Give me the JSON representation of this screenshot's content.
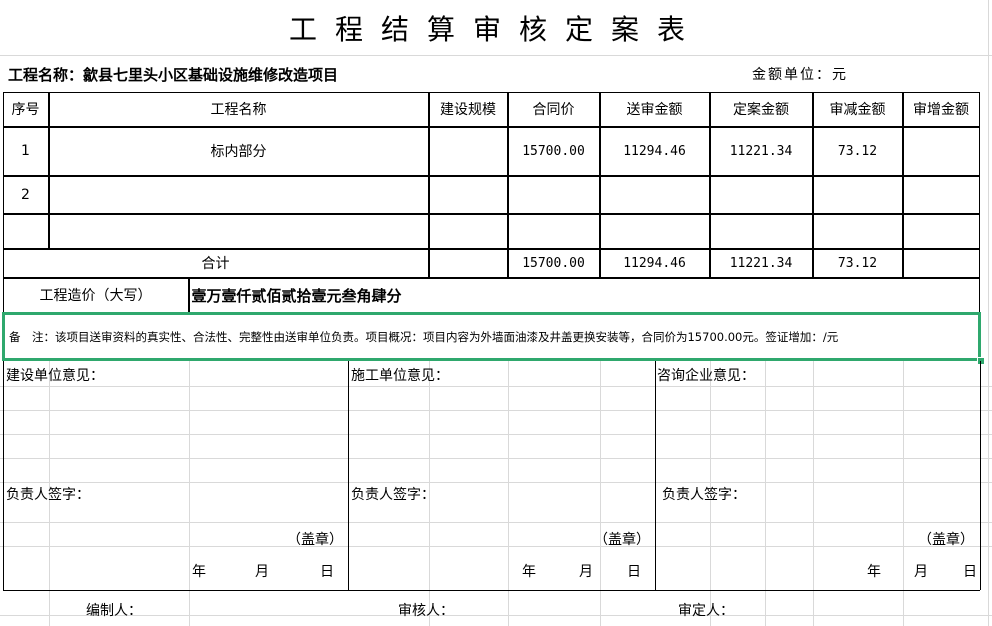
{
  "title": "工程结算审核定案表",
  "project_label": "工程名称：歙县七里头小区基础设施维修改造项目",
  "unit_label": "金额单位：元",
  "columns": [
    "序号",
    "工程名称",
    "建设规模",
    "合同价",
    "送审金额",
    "定案金额",
    "审减金额",
    "审增金额"
  ],
  "rows": [
    {
      "no": "1",
      "name": "标内部分",
      "scale": "",
      "contract": "15700.00",
      "submitted": "11294.46",
      "final": "11221.34",
      "reduced": "73.12",
      "increased": ""
    },
    {
      "no": "2",
      "name": "",
      "scale": "",
      "contract": "",
      "submitted": "",
      "final": "",
      "reduced": "",
      "increased": ""
    },
    {
      "no": "",
      "name": "",
      "scale": "",
      "contract": "",
      "submitted": "",
      "final": "",
      "reduced": "",
      "increased": ""
    }
  ],
  "total": {
    "label": "合计",
    "contract": "15700.00",
    "submitted": "11294.46",
    "final": "11221.34",
    "reduced": "73.12"
  },
  "cost_caps": {
    "label": "工程造价（大写）",
    "value": "壹万壹仟贰佰贰拾壹元叁角肆分"
  },
  "note": "备　注：该项目送审资料的真实性、合法性、完整性由送审单位负责。项目概况：项目内容为外墙面油漆及井盖更换安装等，合同价为15700.00元。签证增加：/元",
  "opinions": [
    {
      "title": "建设单位意见：",
      "sign": "负责人签字：",
      "seal": "（盖章）",
      "year": "年",
      "month": "月",
      "day": "日"
    },
    {
      "title": "施工单位意见：",
      "sign": "负责人签字：",
      "seal": "（盖章）",
      "year": "年",
      "month": "月",
      "day": "日"
    },
    {
      "title": "咨询企业意见：",
      "sign": "负责人签字：",
      "seal": "（盖章）",
      "year": "年",
      "month": "月",
      "day": "日"
    }
  ],
  "footer": {
    "compiler": "编制人：",
    "reviewer": "审核人：",
    "approver": "审定人："
  },
  "selection_color": "#2fa86d"
}
